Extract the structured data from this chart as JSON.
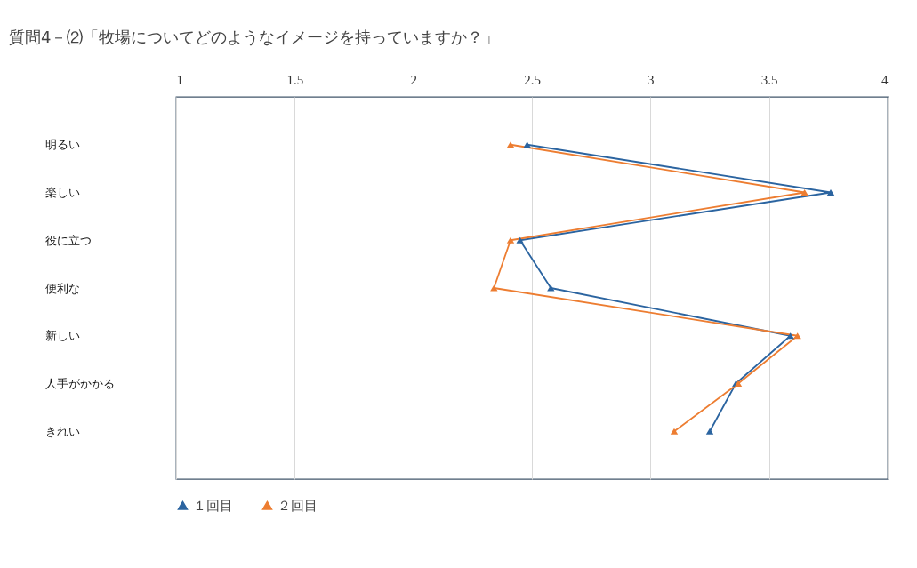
{
  "chart_data": {
    "type": "line",
    "orientation": "horizontal",
    "title": "質問4－⑵「牧場についてどのようなイメージを持っていますか？」",
    "categories": [
      "明るい",
      "楽しい",
      "役に立つ",
      "便利な",
      "新しい",
      "人手がかかる",
      "きれい"
    ],
    "series": [
      {
        "name": "１回目",
        "color": "#2b64a0",
        "values": [
          2.48,
          3.76,
          2.45,
          2.58,
          3.59,
          3.36,
          3.25
        ]
      },
      {
        "name": "２回目",
        "color": "#ed7d31",
        "values": [
          2.41,
          3.65,
          2.41,
          2.34,
          3.62,
          3.37,
          3.1
        ]
      }
    ],
    "xlim": [
      1,
      4
    ],
    "xticks": [
      1,
      1.5,
      2,
      2.5,
      3,
      3.5,
      4
    ],
    "grid": "x",
    "legend": "bottom",
    "marker": "triangle",
    "line_style": "solid"
  }
}
